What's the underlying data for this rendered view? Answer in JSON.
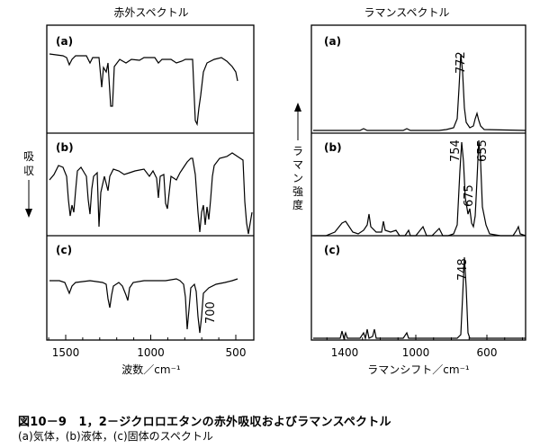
{
  "figure": {
    "ir_title": "赤外スペクトル",
    "raman_title": "ラマンスペクトル",
    "ir_ylabel": "吸収",
    "raman_ylabel": "ラマン強度",
    "ir_xlabel": "波数／cm⁻¹",
    "raman_xlabel": "ラマンシフト／cm⁻¹",
    "panel_labels": [
      "(a)",
      "(b)",
      "(c)"
    ],
    "caption_title": "図10－9　1，2－ジクロロエタンの赤外吸収およびラマンスペクトル",
    "caption_sub": "(a)気体，(b)液体，(c)固体のスペクトル"
  },
  "chart_data": [
    {
      "type": "line",
      "title": "赤外スペクトル",
      "xlabel": "波数／cm⁻¹",
      "ylabel": "吸収",
      "x_ticks": [
        1500,
        1000,
        500
      ],
      "x_direction": "decreasing",
      "series": [
        {
          "name": "(a)",
          "bands": [
            1440,
            1290,
            1235,
            1150,
            1030,
            945,
            730,
            705
          ]
        },
        {
          "name": "(b)",
          "bands": [
            1435,
            1415,
            1290,
            1235,
            1145,
            1030,
            945,
            880,
            770,
            710,
            675,
            655
          ]
        },
        {
          "name": "(c)",
          "bands": [
            1430,
            1240,
            1140,
            1030,
            790,
            700
          ]
        }
      ],
      "annotations": [
        {
          "series": "(c)",
          "text": "700",
          "x": 700
        }
      ]
    },
    {
      "type": "line",
      "title": "ラマンスペクトル",
      "xlabel": "ラマンシフト／cm⁻¹",
      "ylabel": "ラマン強度",
      "x_ticks": [
        1400,
        1000,
        600
      ],
      "x_direction": "decreasing",
      "series": [
        {
          "name": "(a)",
          "peaks": [
            1430,
            1300,
            772,
            655
          ]
        },
        {
          "name": "(b)",
          "peaks": [
            1430,
            1300,
            1210,
            1145,
            1055,
            950,
            880,
            754,
            675,
            655,
            460
          ]
        },
        {
          "name": "(c)",
          "peaks": [
            1430,
            1300,
            1270,
            1055,
            748
          ]
        }
      ],
      "annotations": [
        {
          "series": "(a)",
          "text": "772",
          "x": 772
        },
        {
          "series": "(b)",
          "text": "754",
          "x": 754
        },
        {
          "series": "(b)",
          "text": "675",
          "x": 675
        },
        {
          "series": "(b)",
          "text": "655",
          "x": 655
        },
        {
          "series": "(c)",
          "text": "748",
          "x": 748
        }
      ]
    }
  ]
}
